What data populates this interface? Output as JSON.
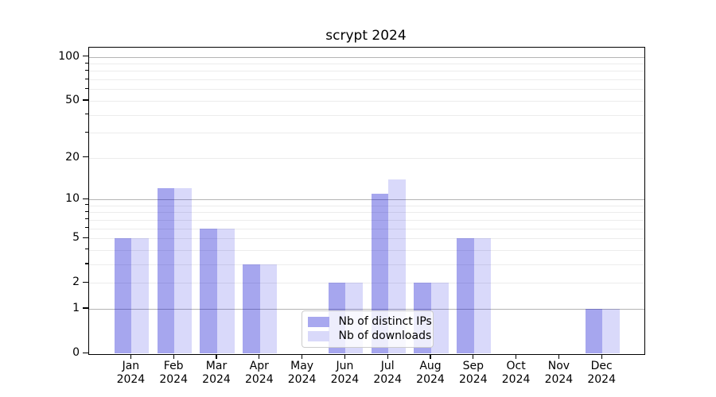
{
  "chart_data": {
    "type": "bar",
    "title": "scrypt 2024",
    "categories": [
      "Jan",
      "Feb",
      "Mar",
      "Apr",
      "May",
      "Jun",
      "Jul",
      "Aug",
      "Sep",
      "Oct",
      "Nov",
      "Dec"
    ],
    "category_year": "2024",
    "series": [
      {
        "name": "Nb of distinct IPs",
        "color": "rgba(0,0,205,0.35)",
        "swatch": "#a8a8ef",
        "values": [
          5,
          12,
          6,
          3,
          0,
          2,
          11,
          2,
          5,
          0,
          0,
          1
        ]
      },
      {
        "name": "Nb of downloads",
        "color": "rgba(0,0,222,0.15)",
        "swatch": "#d9d9fa",
        "values": [
          5,
          12,
          6,
          3,
          0,
          2,
          14,
          2,
          5,
          0,
          0,
          1
        ]
      }
    ],
    "yscale": "symlog (position proportional to ln(1+value))",
    "ylim": [
      0,
      116
    ],
    "yticks_labeled": [
      0,
      1,
      2,
      5,
      10,
      20,
      50,
      100
    ],
    "gridlines_major": [
      1,
      10,
      100
    ],
    "gridlines_minor": [
      2,
      3,
      4,
      5,
      6,
      7,
      8,
      9,
      20,
      30,
      40,
      50,
      60,
      70,
      80,
      90
    ],
    "grid": true,
    "legend_position": "inside lower-center"
  },
  "colors": {
    "grid_major": "#b4b4b4",
    "grid_minor": "#ececec",
    "spine": "#000000",
    "background": "#ffffff",
    "legend_border": "#cccccc",
    "legend_background": "rgba(255,255,255,0.8)",
    "text": "#000000"
  }
}
